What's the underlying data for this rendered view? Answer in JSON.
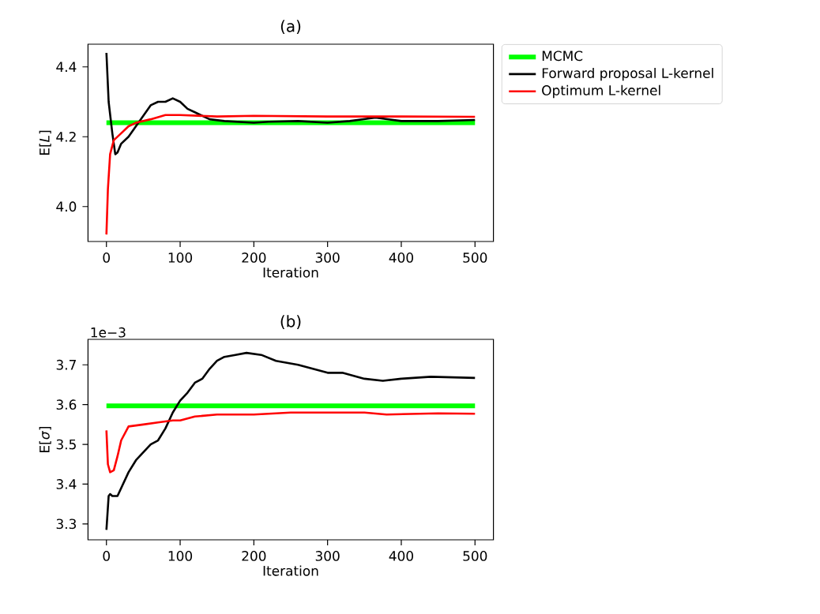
{
  "chart_data": [
    {
      "type": "line",
      "title": "(a)",
      "xlabel": "Iteration",
      "ylabel": "E[*L*]",
      "xlim": [
        -25,
        525
      ],
      "ylim": [
        3.9,
        4.465
      ],
      "xticks": [
        0,
        100,
        200,
        300,
        400,
        500
      ],
      "yticks": [
        {
          "value": 4.0,
          "label": "4.0"
        },
        4.2,
        4.4
      ],
      "legend": "right",
      "grid": false,
      "series": [
        {
          "name": "MCMC",
          "color": "#00ff00",
          "x": [
            0,
            500
          ],
          "values": [
            4.24,
            4.24
          ]
        },
        {
          "name": "Forward proposal L-kernel",
          "color": "#000000",
          "x": [
            0,
            3,
            8,
            12,
            15,
            20,
            30,
            40,
            50,
            60,
            70,
            80,
            90,
            100,
            110,
            120,
            140,
            160,
            200,
            220,
            260,
            300,
            330,
            365,
            400,
            450,
            500
          ],
          "values": [
            4.44,
            4.3,
            4.21,
            4.15,
            4.155,
            4.18,
            4.2,
            4.23,
            4.26,
            4.29,
            4.3,
            4.3,
            4.31,
            4.3,
            4.28,
            4.27,
            4.25,
            4.245,
            4.24,
            4.243,
            4.245,
            4.24,
            4.245,
            4.255,
            4.245,
            4.245,
            4.248
          ]
        },
        {
          "name": "Optimum L-kernel",
          "color": "#ff0000",
          "x": [
            0,
            2,
            5,
            10,
            20,
            30,
            40,
            60,
            80,
            100,
            150,
            200,
            300,
            400,
            500
          ],
          "values": [
            3.92,
            4.05,
            4.15,
            4.19,
            4.21,
            4.23,
            4.24,
            4.25,
            4.262,
            4.262,
            4.258,
            4.26,
            4.258,
            4.258,
            4.257
          ]
        }
      ]
    },
    {
      "type": "line",
      "title": "(b)",
      "xlabel": "Iteration",
      "ylabel": "E[*σ*]",
      "annotations": [
        "1e−3"
      ],
      "xlim": [
        -25,
        525
      ],
      "ylim": [
        3.26,
        3.764
      ],
      "xticks": [
        0,
        100,
        200,
        300,
        400,
        500
      ],
      "yticks": [
        3.3,
        3.4,
        3.5,
        3.6,
        3.7
      ],
      "grid": false,
      "series": [
        {
          "color": "#00ff00",
          "x": [
            0,
            500
          ],
          "values": [
            3.597,
            3.597
          ]
        },
        {
          "color": "#000000",
          "x": [
            0,
            3,
            5,
            8,
            15,
            20,
            30,
            40,
            50,
            60,
            70,
            80,
            90,
            100,
            110,
            120,
            130,
            140,
            150,
            160,
            175,
            190,
            210,
            230,
            260,
            280,
            300,
            320,
            350,
            375,
            400,
            440,
            500
          ],
          "values": [
            3.285,
            3.37,
            3.375,
            3.37,
            3.37,
            3.39,
            3.43,
            3.46,
            3.48,
            3.5,
            3.51,
            3.54,
            3.58,
            3.61,
            3.63,
            3.655,
            3.665,
            3.69,
            3.71,
            3.72,
            3.725,
            3.73,
            3.725,
            3.71,
            3.7,
            3.69,
            3.68,
            3.68,
            3.665,
            3.66,
            3.665,
            3.67,
            3.667
          ]
        },
        {
          "color": "#ff0000",
          "x": [
            0,
            2,
            5,
            10,
            15,
            20,
            30,
            50,
            70,
            90,
            100,
            120,
            150,
            200,
            250,
            300,
            350,
            380,
            450,
            500
          ],
          "values": [
            3.535,
            3.45,
            3.43,
            3.435,
            3.47,
            3.51,
            3.545,
            3.55,
            3.555,
            3.56,
            3.56,
            3.57,
            3.575,
            3.575,
            3.58,
            3.58,
            3.58,
            3.575,
            3.578,
            3.577
          ]
        }
      ]
    }
  ]
}
